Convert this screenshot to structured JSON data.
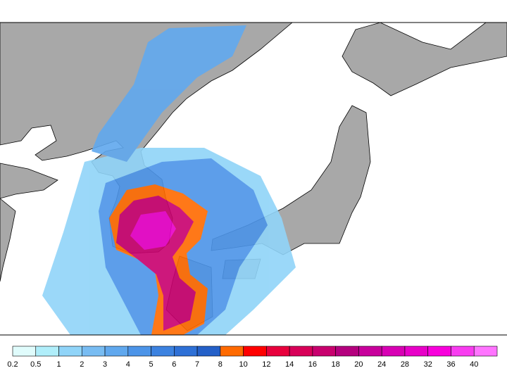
{
  "colorbar": {
    "ticks": [
      0.2,
      0.5,
      1,
      2,
      3,
      4,
      5,
      6,
      7,
      8,
      10,
      12,
      14,
      16,
      18,
      20,
      24,
      28,
      32,
      36,
      40
    ],
    "colors": [
      "#e0fcfc",
      "#b0eefa",
      "#90d4f8",
      "#78bcf2",
      "#60a8ee",
      "#4c94e8",
      "#3c82e0",
      "#2e70d6",
      "#2460c8",
      "#ff6a00",
      "#ff0000",
      "#e8003c",
      "#d80058",
      "#c8006e",
      "#b4007e",
      "#c8009c",
      "#d800b4",
      "#e800c8",
      "#f800dc",
      "#f83cf0",
      "#ff74ff"
    ]
  }
}
